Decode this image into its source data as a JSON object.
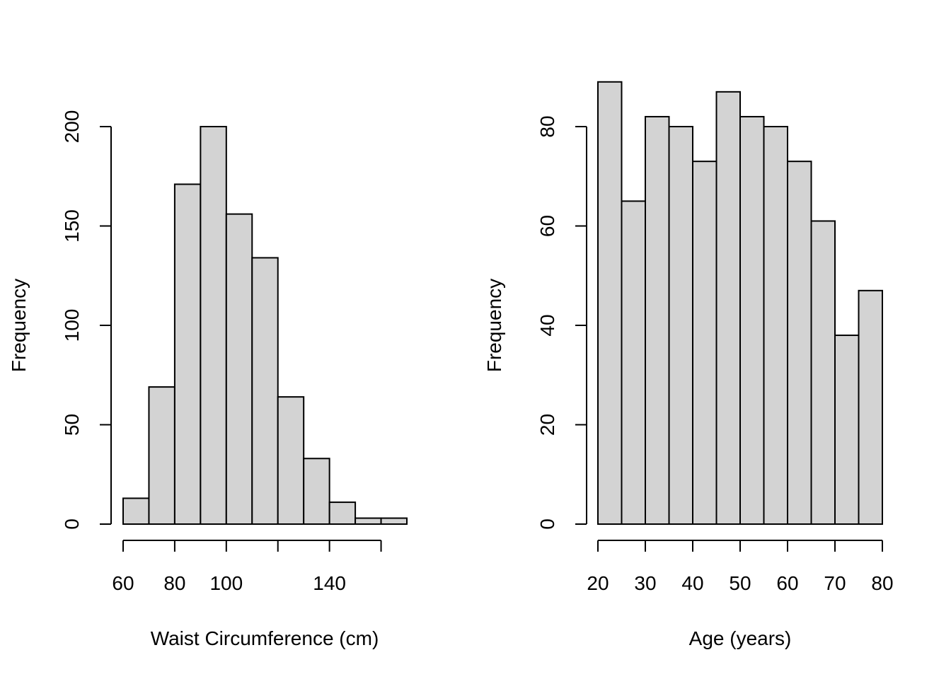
{
  "chart_data": [
    {
      "type": "bar",
      "title": "",
      "xlabel": "Waist Circumference (cm)",
      "ylabel": "Frequency",
      "bins": [
        {
          "x0": 60,
          "x1": 70,
          "count": 13
        },
        {
          "x0": 70,
          "x1": 80,
          "count": 69
        },
        {
          "x0": 80,
          "x1": 90,
          "count": 171
        },
        {
          "x0": 90,
          "x1": 100,
          "count": 200
        },
        {
          "x0": 100,
          "x1": 110,
          "count": 156
        },
        {
          "x0": 110,
          "x1": 120,
          "count": 134
        },
        {
          "x0": 120,
          "x1": 130,
          "count": 64
        },
        {
          "x0": 130,
          "x1": 140,
          "count": 33
        },
        {
          "x0": 140,
          "x1": 150,
          "count": 11
        },
        {
          "x0": 150,
          "x1": 160,
          "count": 3
        },
        {
          "x0": 160,
          "x1": 170,
          "count": 3
        }
      ],
      "xlim": [
        60,
        170
      ],
      "ylim": [
        0,
        200
      ],
      "xticks": [
        60,
        80,
        100,
        120,
        140,
        160
      ],
      "xtick_labels": [
        "60",
        "80",
        "100",
        "",
        "140",
        ""
      ],
      "yticks": [
        0,
        50,
        100,
        150,
        200
      ],
      "ytick_labels": [
        "0",
        "50",
        "100",
        "150",
        "200"
      ],
      "grid": false,
      "legend": "none"
    },
    {
      "type": "bar",
      "title": "",
      "xlabel": "Age (years)",
      "ylabel": "Frequency",
      "bins": [
        {
          "x0": 20,
          "x1": 25,
          "count": 89
        },
        {
          "x0": 25,
          "x1": 30,
          "count": 65
        },
        {
          "x0": 30,
          "x1": 35,
          "count": 82
        },
        {
          "x0": 35,
          "x1": 40,
          "count": 80
        },
        {
          "x0": 40,
          "x1": 45,
          "count": 73
        },
        {
          "x0": 45,
          "x1": 50,
          "count": 87
        },
        {
          "x0": 50,
          "x1": 55,
          "count": 82
        },
        {
          "x0": 55,
          "x1": 60,
          "count": 80
        },
        {
          "x0": 60,
          "x1": 65,
          "count": 73
        },
        {
          "x0": 65,
          "x1": 70,
          "count": 61
        },
        {
          "x0": 70,
          "x1": 75,
          "count": 38
        },
        {
          "x0": 75,
          "x1": 80,
          "count": 47
        }
      ],
      "xlim": [
        20,
        80
      ],
      "ylim": [
        0,
        80
      ],
      "xticks": [
        20,
        30,
        40,
        50,
        60,
        70,
        80
      ],
      "xtick_labels": [
        "20",
        "30",
        "40",
        "50",
        "60",
        "70",
        "80"
      ],
      "yticks": [
        0,
        20,
        40,
        60,
        80
      ],
      "ytick_labels": [
        "0",
        "20",
        "40",
        "60",
        "80"
      ],
      "grid": false,
      "legend": "none"
    }
  ]
}
